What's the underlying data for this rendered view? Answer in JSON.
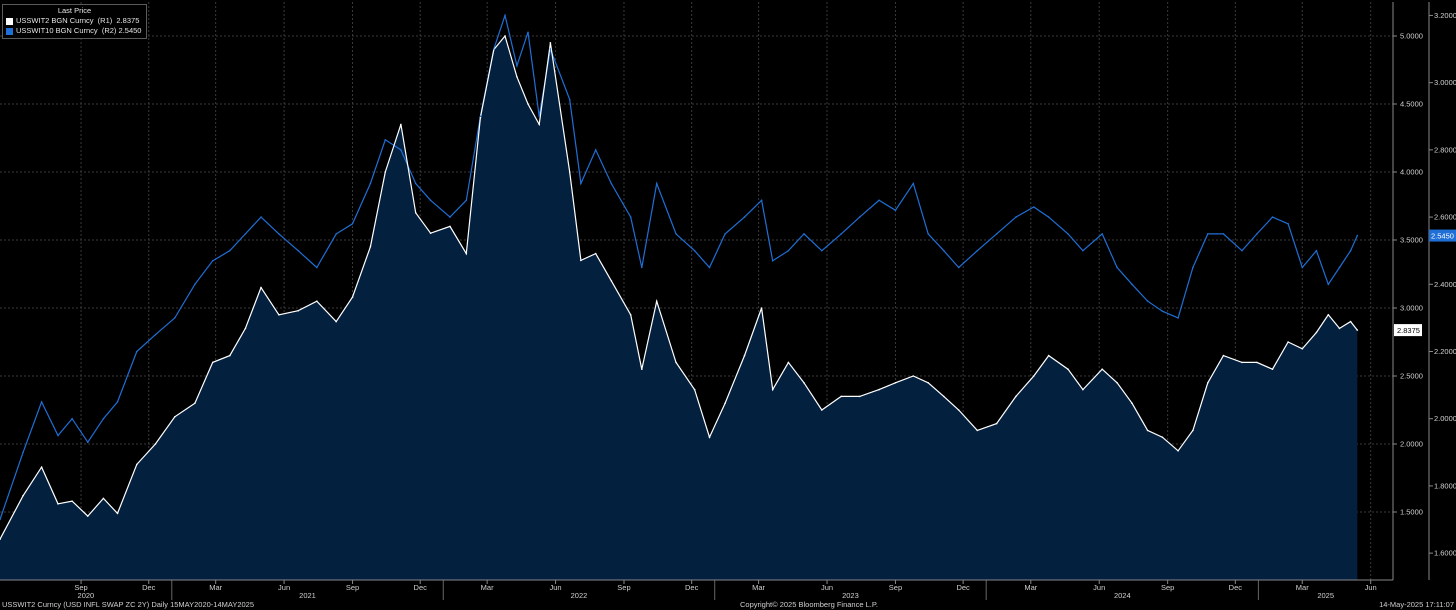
{
  "legend": {
    "title": "Last Price",
    "items": [
      {
        "label": "USSWIT2 BGN Curncy  (R1)  2.8375",
        "color": "#ffffff"
      },
      {
        "label": "USSWIT10 BGN Curncy  (R2) 2.5450",
        "color": "#1f6fd6"
      }
    ]
  },
  "footer": {
    "left": "USSWIT2 Curncy (USD INFL SWAP ZC 2Y)  Daily 15MAY2020-14MAY2025",
    "center": "Copyright© 2025 Bloomberg Finance L.P.",
    "right": "14-May-2025 17:11:07"
  },
  "chart_data": {
    "type": "line",
    "x_range": [
      "2020-05-15",
      "2025-05-14"
    ],
    "axis_end": "2025-07-01",
    "month_ticks": [
      "Sep",
      "Dec",
      "Mar",
      "Jun",
      "Sep",
      "Dec",
      "Mar",
      "Jun",
      "Sep",
      "Dec",
      "Mar",
      "Jun",
      "Sep",
      "Dec",
      "Mar",
      "Jun",
      "Sep",
      "Dec",
      "Mar",
      "Jun"
    ],
    "year_ticks": [
      "2020",
      "2021",
      "2022",
      "2023",
      "2024",
      "2025"
    ],
    "axes": {
      "R1": {
        "ylim": [
          1.0,
          5.25
        ],
        "ticks": [
          "1.5000",
          "2.0000",
          "2.5000",
          "3.0000",
          "3.5000",
          "4.0000",
          "4.5000",
          "5.0000"
        ]
      },
      "R2": {
        "ylim": [
          1.52,
          3.24
        ],
        "ticks": [
          "1.6000",
          "1.8000",
          "2.0000",
          "2.2000",
          "2.4000",
          "2.6000",
          "2.8000",
          "3.0000",
          "3.2000"
        ]
      }
    },
    "series": [
      {
        "name": "USSWIT2 BGN Curncy",
        "axis": "R1",
        "color": "#ffffff",
        "fill": "#04203f",
        "last_label": "2.8375",
        "points": [
          [
            "2020-05-15",
            1.3
          ],
          [
            "2020-06-15",
            1.62
          ],
          [
            "2020-07-10",
            1.83
          ],
          [
            "2020-08-01",
            1.56
          ],
          [
            "2020-08-20",
            1.58
          ],
          [
            "2020-09-10",
            1.47
          ],
          [
            "2020-10-01",
            1.6
          ],
          [
            "2020-10-20",
            1.49
          ],
          [
            "2020-11-15",
            1.85
          ],
          [
            "2020-12-10",
            2.0
          ],
          [
            "2021-01-05",
            2.2
          ],
          [
            "2021-02-01",
            2.3
          ],
          [
            "2021-02-25",
            2.6
          ],
          [
            "2021-03-20",
            2.65
          ],
          [
            "2021-04-10",
            2.85
          ],
          [
            "2021-05-01",
            3.15
          ],
          [
            "2021-05-25",
            2.95
          ],
          [
            "2021-06-20",
            2.98
          ],
          [
            "2021-07-15",
            3.05
          ],
          [
            "2021-08-10",
            2.9
          ],
          [
            "2021-09-01",
            3.08
          ],
          [
            "2021-09-25",
            3.45
          ],
          [
            "2021-10-15",
            4.0
          ],
          [
            "2021-11-05",
            4.35
          ],
          [
            "2021-11-25",
            3.7
          ],
          [
            "2021-12-15",
            3.55
          ],
          [
            "2022-01-10",
            3.6
          ],
          [
            "2022-02-01",
            3.4
          ],
          [
            "2022-02-20",
            4.4
          ],
          [
            "2022-03-10",
            4.9
          ],
          [
            "2022-03-25",
            5.0
          ],
          [
            "2022-04-10",
            4.7
          ],
          [
            "2022-04-25",
            4.5
          ],
          [
            "2022-05-10",
            4.35
          ],
          [
            "2022-05-25",
            4.95
          ],
          [
            "2022-06-20",
            4.0
          ],
          [
            "2022-07-05",
            3.35
          ],
          [
            "2022-07-25",
            3.4
          ],
          [
            "2022-08-15",
            3.2
          ],
          [
            "2022-09-10",
            2.95
          ],
          [
            "2022-09-25",
            2.55
          ],
          [
            "2022-10-15",
            3.05
          ],
          [
            "2022-11-10",
            2.6
          ],
          [
            "2022-12-05",
            2.4
          ],
          [
            "2022-12-25",
            2.05
          ],
          [
            "2023-01-15",
            2.3
          ],
          [
            "2023-02-10",
            2.65
          ],
          [
            "2023-03-05",
            3.0
          ],
          [
            "2023-03-20",
            2.4
          ],
          [
            "2023-04-10",
            2.6
          ],
          [
            "2023-05-01",
            2.45
          ],
          [
            "2023-05-25",
            2.25
          ],
          [
            "2023-06-20",
            2.35
          ],
          [
            "2023-07-15",
            2.35
          ],
          [
            "2023-08-10",
            2.4
          ],
          [
            "2023-09-01",
            2.45
          ],
          [
            "2023-09-25",
            2.5
          ],
          [
            "2023-10-15",
            2.45
          ],
          [
            "2023-11-05",
            2.35
          ],
          [
            "2023-11-25",
            2.25
          ],
          [
            "2023-12-20",
            2.1
          ],
          [
            "2024-01-15",
            2.15
          ],
          [
            "2024-02-10",
            2.35
          ],
          [
            "2024-03-05",
            2.5
          ],
          [
            "2024-03-25",
            2.65
          ],
          [
            "2024-04-20",
            2.55
          ],
          [
            "2024-05-10",
            2.4
          ],
          [
            "2024-06-05",
            2.55
          ],
          [
            "2024-06-25",
            2.45
          ],
          [
            "2024-07-15",
            2.3
          ],
          [
            "2024-08-05",
            2.1
          ],
          [
            "2024-08-25",
            2.05
          ],
          [
            "2024-09-15",
            1.95
          ],
          [
            "2024-10-05",
            2.1
          ],
          [
            "2024-10-25",
            2.45
          ],
          [
            "2024-11-15",
            2.65
          ],
          [
            "2024-12-10",
            2.6
          ],
          [
            "2024-12-30",
            2.6
          ],
          [
            "2025-01-20",
            2.55
          ],
          [
            "2025-02-10",
            2.75
          ],
          [
            "2025-03-01",
            2.7
          ],
          [
            "2025-03-20",
            2.82
          ],
          [
            "2025-04-05",
            2.95
          ],
          [
            "2025-04-20",
            2.85
          ],
          [
            "2025-05-05",
            2.9
          ],
          [
            "2025-05-14",
            2.8375
          ]
        ]
      },
      {
        "name": "USSWIT10 BGN Curncy",
        "axis": "R2",
        "color": "#1f6fd6",
        "last_label": "2.5450",
        "points": [
          [
            "2020-05-15",
            1.7
          ],
          [
            "2020-06-15",
            1.9
          ],
          [
            "2020-07-10",
            2.05
          ],
          [
            "2020-08-01",
            1.95
          ],
          [
            "2020-08-20",
            2.0
          ],
          [
            "2020-09-10",
            1.93
          ],
          [
            "2020-10-01",
            2.0
          ],
          [
            "2020-10-20",
            2.05
          ],
          [
            "2020-11-15",
            2.2
          ],
          [
            "2020-12-10",
            2.25
          ],
          [
            "2021-01-05",
            2.3
          ],
          [
            "2021-02-01",
            2.4
          ],
          [
            "2021-02-25",
            2.47
          ],
          [
            "2021-03-20",
            2.5
          ],
          [
            "2021-04-10",
            2.55
          ],
          [
            "2021-05-01",
            2.6
          ],
          [
            "2021-05-25",
            2.55
          ],
          [
            "2021-06-20",
            2.5
          ],
          [
            "2021-07-15",
            2.45
          ],
          [
            "2021-08-10",
            2.55
          ],
          [
            "2021-09-01",
            2.58
          ],
          [
            "2021-09-25",
            2.7
          ],
          [
            "2021-10-15",
            2.83
          ],
          [
            "2021-11-05",
            2.8
          ],
          [
            "2021-11-25",
            2.7
          ],
          [
            "2021-12-15",
            2.65
          ],
          [
            "2022-01-10",
            2.6
          ],
          [
            "2022-02-01",
            2.65
          ],
          [
            "2022-02-20",
            2.9
          ],
          [
            "2022-03-10",
            3.1
          ],
          [
            "2022-03-25",
            3.2
          ],
          [
            "2022-04-10",
            3.05
          ],
          [
            "2022-04-25",
            3.15
          ],
          [
            "2022-05-10",
            2.9
          ],
          [
            "2022-05-25",
            3.1
          ],
          [
            "2022-06-20",
            2.95
          ],
          [
            "2022-07-05",
            2.7
          ],
          [
            "2022-07-25",
            2.8
          ],
          [
            "2022-08-15",
            2.7
          ],
          [
            "2022-09-10",
            2.6
          ],
          [
            "2022-09-25",
            2.45
          ],
          [
            "2022-10-15",
            2.7
          ],
          [
            "2022-11-10",
            2.55
          ],
          [
            "2022-12-05",
            2.5
          ],
          [
            "2022-12-25",
            2.45
          ],
          [
            "2023-01-15",
            2.55
          ],
          [
            "2023-02-10",
            2.6
          ],
          [
            "2023-03-05",
            2.65
          ],
          [
            "2023-03-20",
            2.47
          ],
          [
            "2023-04-10",
            2.5
          ],
          [
            "2023-05-01",
            2.55
          ],
          [
            "2023-05-25",
            2.5
          ],
          [
            "2023-06-20",
            2.55
          ],
          [
            "2023-07-15",
            2.6
          ],
          [
            "2023-08-10",
            2.65
          ],
          [
            "2023-09-01",
            2.62
          ],
          [
            "2023-09-25",
            2.7
          ],
          [
            "2023-10-15",
            2.55
          ],
          [
            "2023-11-05",
            2.5
          ],
          [
            "2023-11-25",
            2.45
          ],
          [
            "2023-12-20",
            2.5
          ],
          [
            "2024-01-15",
            2.55
          ],
          [
            "2024-02-10",
            2.6
          ],
          [
            "2024-03-05",
            2.63
          ],
          [
            "2024-03-25",
            2.6
          ],
          [
            "2024-04-20",
            2.55
          ],
          [
            "2024-05-10",
            2.5
          ],
          [
            "2024-06-05",
            2.55
          ],
          [
            "2024-06-25",
            2.45
          ],
          [
            "2024-07-15",
            2.4
          ],
          [
            "2024-08-05",
            2.35
          ],
          [
            "2024-08-25",
            2.32
          ],
          [
            "2024-09-15",
            2.3
          ],
          [
            "2024-10-05",
            2.45
          ],
          [
            "2024-10-25",
            2.55
          ],
          [
            "2024-11-15",
            2.55
          ],
          [
            "2024-12-10",
            2.5
          ],
          [
            "2024-12-30",
            2.55
          ],
          [
            "2025-01-20",
            2.6
          ],
          [
            "2025-02-10",
            2.58
          ],
          [
            "2025-03-01",
            2.45
          ],
          [
            "2025-03-20",
            2.5
          ],
          [
            "2025-04-05",
            2.4
          ],
          [
            "2025-04-20",
            2.45
          ],
          [
            "2025-05-05",
            2.5
          ],
          [
            "2025-05-14",
            2.545
          ]
        ]
      }
    ],
    "grid": true,
    "legend_position": "top-left"
  }
}
